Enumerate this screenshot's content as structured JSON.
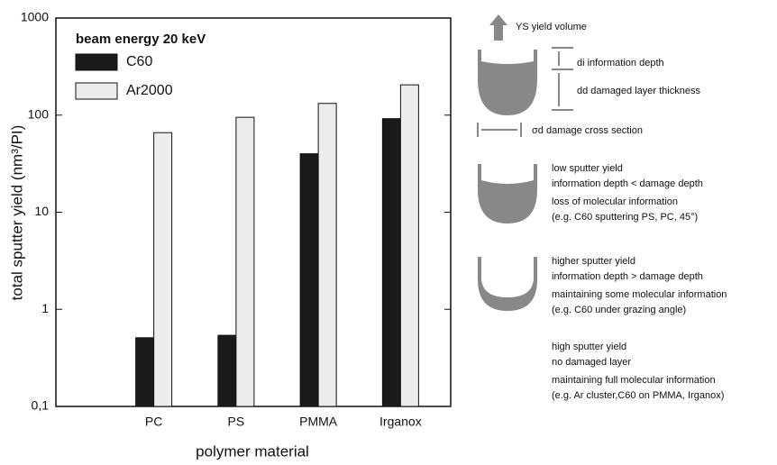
{
  "chart_data": {
    "type": "bar",
    "legend_title": "beam energy 20 keV",
    "categories": [
      "PC",
      "PS",
      "PMMA",
      "Irganox"
    ],
    "series": [
      {
        "name": "C60",
        "color": "#1a1a1a",
        "values": [
          0.51,
          0.54,
          40,
          92
        ]
      },
      {
        "name": "Ar2000",
        "color": "#ececec",
        "values": [
          66,
          95,
          132,
          205
        ]
      }
    ],
    "ylim": [
      0.1,
      1000
    ],
    "yticks": [
      {
        "value": 0.1,
        "label": "0,1"
      },
      1,
      10,
      100,
      1000
    ],
    "ylabel": "total sputter yield (nm³/PI)",
    "xlabel": "polymer material",
    "yscale": "log",
    "legend": "upper left"
  },
  "diagram": {
    "yield_volume": "YS yield volume",
    "info_depth": "di information depth",
    "damaged_layer": "dd damaged layer thickness",
    "cross_section": "σd damage cross section",
    "cases": [
      [
        "low sputter yield",
        "information depth < damage depth",
        "loss of molecular information",
        "(e.g. C60 sputtering PS, PC, 45°)"
      ],
      [
        "higher sputter yield",
        "information depth > damage depth",
        "maintaining some molecular information",
        "(e.g. C60 under grazing angle)"
      ],
      [
        "high sputter yield",
        "no damaged layer",
        "maintaining full molecular information",
        "(e.g. Ar cluster,C60 on PMMA, Irganox)"
      ]
    ]
  }
}
